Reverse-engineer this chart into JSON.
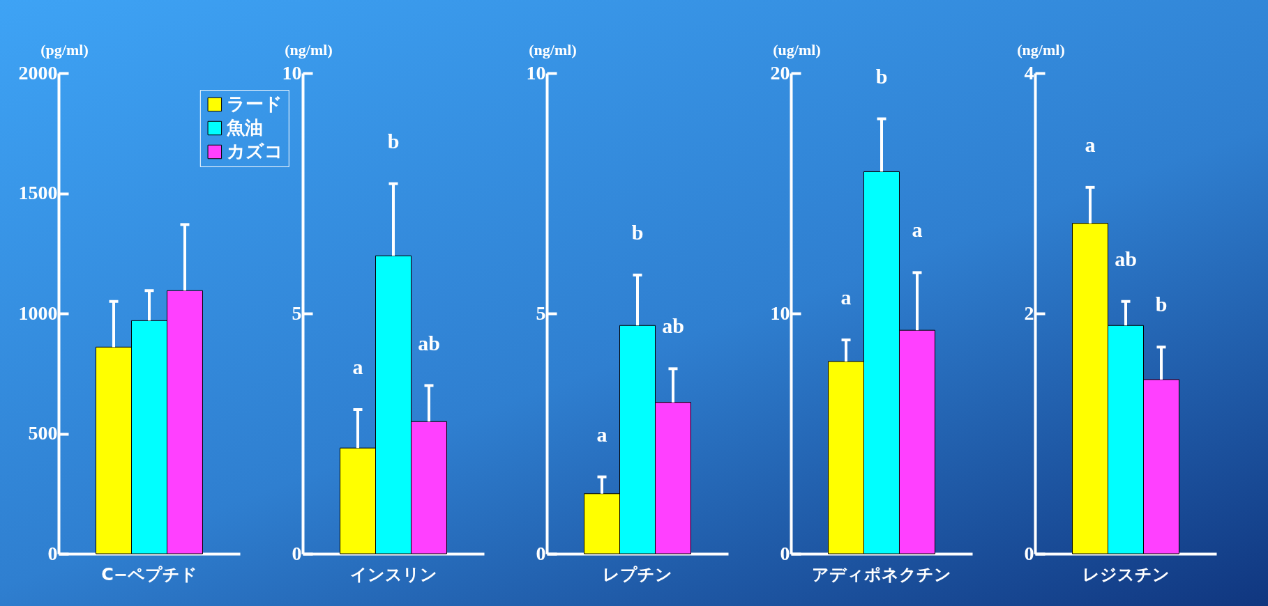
{
  "chart_data": [
    {
      "type": "bar",
      "categories": [
        "C−ペプチド"
      ],
      "ylabel": "(pg/ml)",
      "ylim": [
        0,
        2000
      ],
      "yticks": [
        0,
        500,
        1000,
        1500,
        2000
      ],
      "grid": false,
      "legend": "top right",
      "series": [
        {
          "name": "ラード",
          "color": "#ffff00",
          "values": [
            860
          ],
          "errors": [
            190
          ]
        },
        {
          "name": "魚油",
          "color": "#00ffff",
          "values": [
            970
          ],
          "errors": [
            125
          ]
        },
        {
          "name": "カズコ",
          "color": "#ff40ff",
          "values": [
            1095
          ],
          "errors": [
            275
          ]
        }
      ]
    },
    {
      "type": "bar",
      "categories": [
        "インスリン"
      ],
      "ylabel": "(ng/ml)",
      "ylim": [
        0,
        10
      ],
      "yticks": [
        0,
        5,
        10
      ],
      "grid": false,
      "annotations": [
        "a",
        "b",
        "ab"
      ],
      "series": [
        {
          "color": "#ffff00",
          "values": [
            2.2
          ],
          "errors": [
            0.8
          ]
        },
        {
          "color": "#00ffff",
          "values": [
            6.2
          ],
          "errors": [
            1.5
          ]
        },
        {
          "color": "#ff40ff",
          "values": [
            2.75
          ],
          "errors": [
            0.75
          ]
        }
      ]
    },
    {
      "type": "bar",
      "categories": [
        "レプチン"
      ],
      "ylabel": "(ng/ml)",
      "ylim": [
        0,
        10
      ],
      "yticks": [
        0,
        5,
        10
      ],
      "grid": false,
      "annotations": [
        "a",
        "b",
        "ab"
      ],
      "series": [
        {
          "color": "#ffff00",
          "values": [
            1.25
          ],
          "errors": [
            0.35
          ]
        },
        {
          "color": "#00ffff",
          "values": [
            4.75
          ],
          "errors": [
            1.05
          ]
        },
        {
          "color": "#ff40ff",
          "values": [
            3.15
          ],
          "errors": [
            0.7
          ]
        }
      ]
    },
    {
      "type": "bar",
      "categories": [
        "アディポネクチン"
      ],
      "ylabel": "(ug/ml)",
      "ylim": [
        0,
        20
      ],
      "yticks": [
        0,
        10,
        20
      ],
      "grid": false,
      "annotations": [
        "a",
        "b",
        "a"
      ],
      "series": [
        {
          "color": "#ffff00",
          "values": [
            8.0
          ],
          "errors": [
            0.9
          ]
        },
        {
          "color": "#00ffff",
          "values": [
            15.9
          ],
          "errors": [
            2.2
          ]
        },
        {
          "color": "#ff40ff",
          "values": [
            9.3
          ],
          "errors": [
            2.4
          ]
        }
      ]
    },
    {
      "type": "bar",
      "categories": [
        "レジスチン"
      ],
      "ylabel": "(ng/ml)",
      "ylim": [
        0,
        4
      ],
      "yticks": [
        0,
        2,
        4
      ],
      "grid": false,
      "annotations": [
        "a",
        "ab",
        "b"
      ],
      "series": [
        {
          "color": "#ffff00",
          "values": [
            2.75
          ],
          "errors": [
            0.3
          ]
        },
        {
          "color": "#00ffff",
          "values": [
            1.9
          ],
          "errors": [
            0.2
          ]
        },
        {
          "color": "#ff40ff",
          "values": [
            1.45
          ],
          "errors": [
            0.27
          ]
        }
      ]
    }
  ]
}
